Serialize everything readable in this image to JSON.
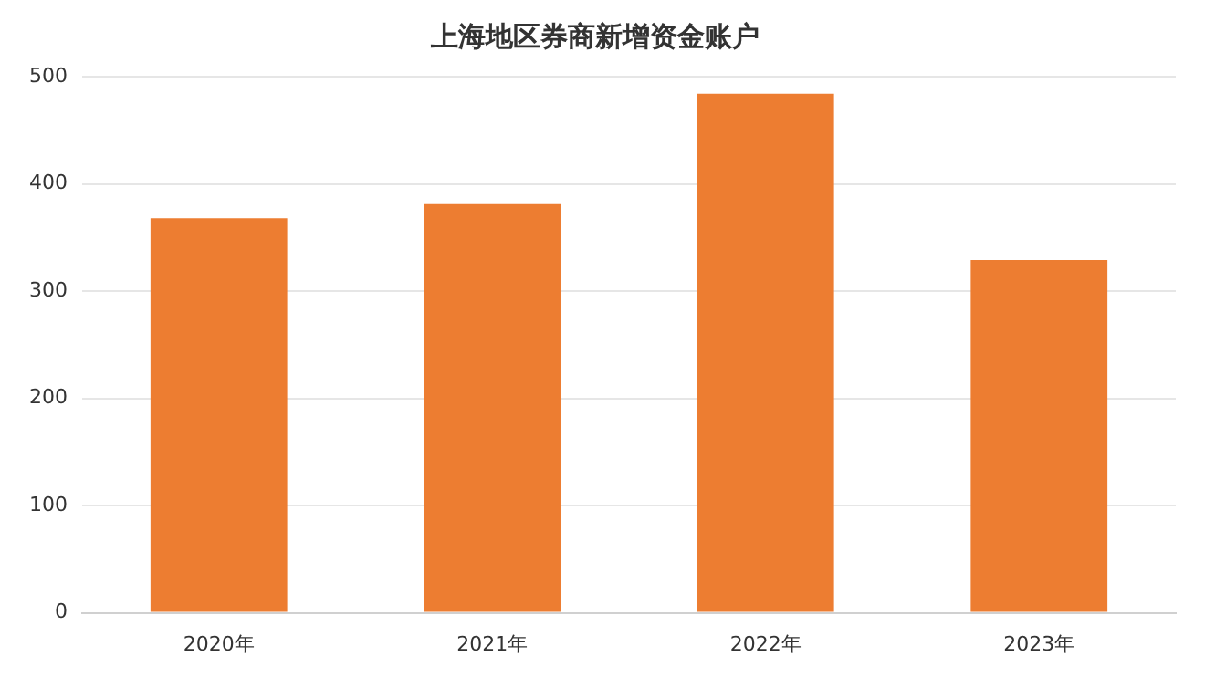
{
  "chart_data": {
    "type": "bar",
    "title": "上海地区券商新增资金账户",
    "categories": [
      "2020年",
      "2021年",
      "2022年",
      "2023年"
    ],
    "values": [
      368,
      381,
      484,
      329
    ],
    "color": "#ed7d31",
    "ylim": [
      0,
      500
    ],
    "yticks": [
      0,
      100,
      200,
      300,
      400,
      500
    ],
    "grid": "y",
    "legend": false
  }
}
